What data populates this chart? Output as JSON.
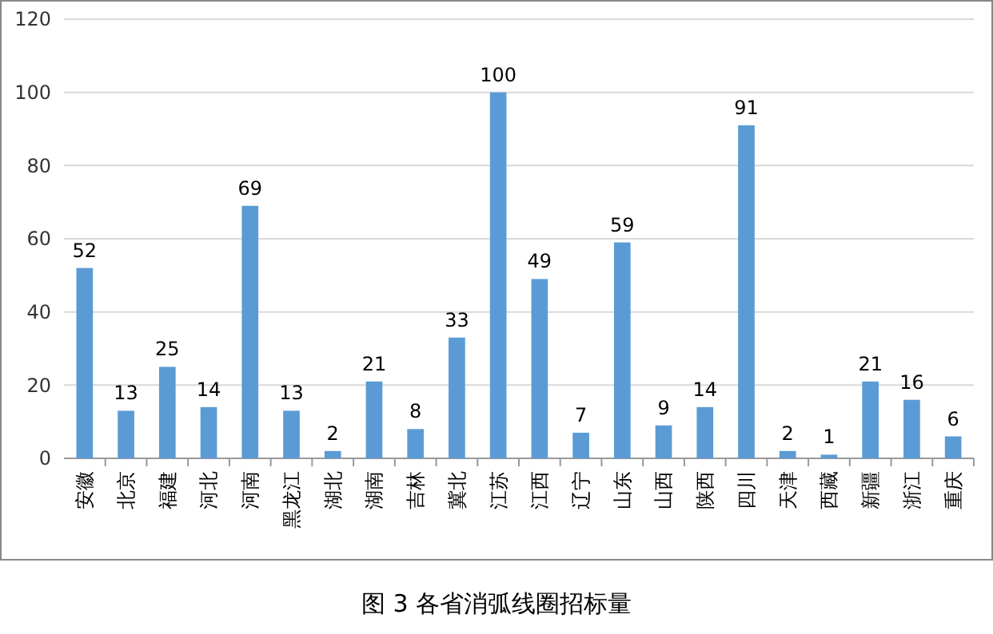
{
  "chart_data": {
    "type": "bar",
    "title": "图 3 各省消弧线圈招标量",
    "categories": [
      "安徽",
      "北京",
      "福建",
      "河北",
      "河南",
      "黑龙江",
      "湖北",
      "湖南",
      "吉林",
      "冀北",
      "江苏",
      "江西",
      "辽宁",
      "山东",
      "山西",
      "陕西",
      "四川",
      "天津",
      "西藏",
      "新疆",
      "浙江",
      "重庆"
    ],
    "values": [
      52,
      13,
      25,
      14,
      69,
      13,
      2,
      21,
      8,
      33,
      100,
      49,
      7,
      59,
      9,
      14,
      91,
      2,
      1,
      21,
      16,
      6
    ],
    "color": "#5b9bd5",
    "ylim": [
      0,
      120
    ],
    "yticks": [
      0,
      20,
      40,
      60,
      80,
      100,
      120
    ],
    "grid": "y",
    "data_labels": true
  }
}
